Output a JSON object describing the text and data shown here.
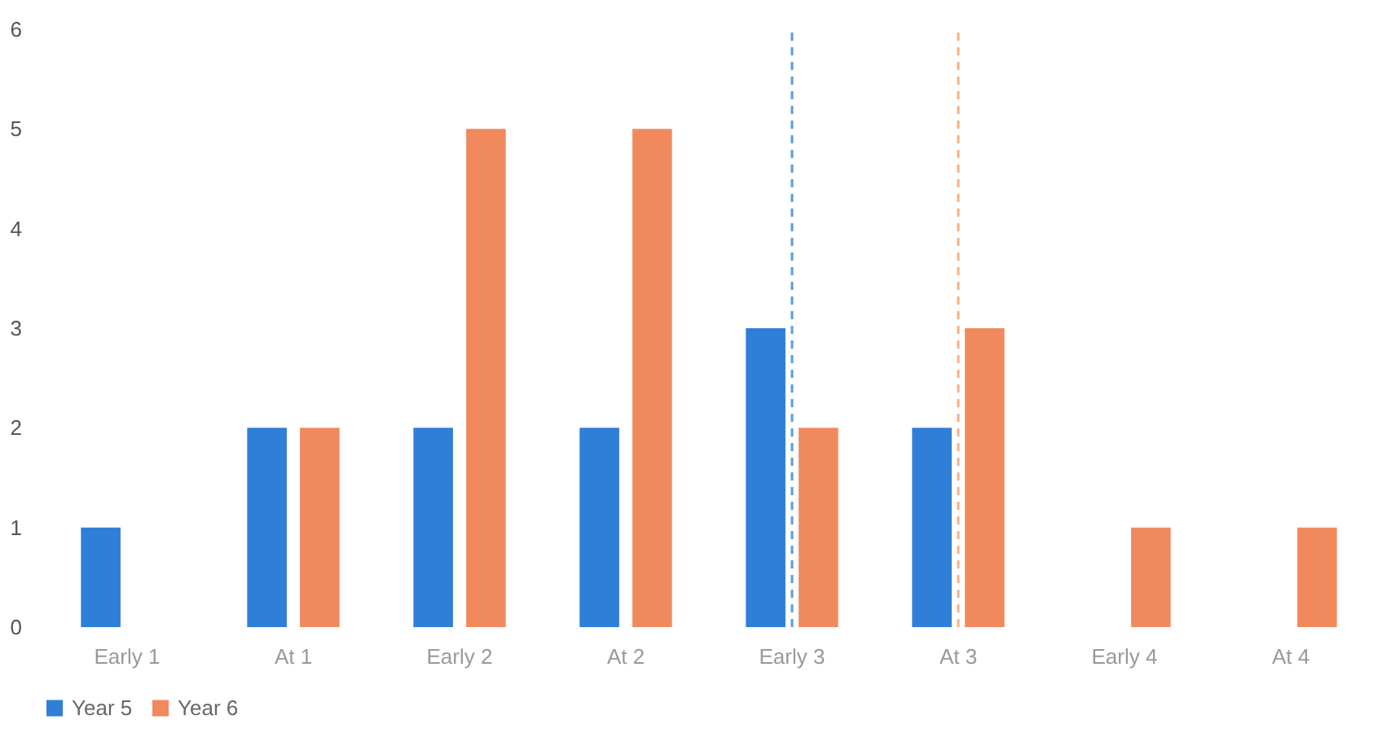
{
  "chart_data": {
    "type": "bar",
    "categories": [
      "Early 1",
      "At 1",
      "Early 2",
      "At 2",
      "Early 3",
      "At 3",
      "Early 4",
      "At 4"
    ],
    "series": [
      {
        "name": "Year 5",
        "color": "#2f7ed8",
        "values": [
          1,
          2,
          2,
          2,
          3,
          2,
          null,
          null
        ]
      },
      {
        "name": "Year 6",
        "color": "#f08a5c",
        "values": [
          null,
          2,
          5,
          5,
          2,
          3,
          1,
          1
        ]
      }
    ],
    "ylim": [
      0,
      6
    ],
    "yticks": [
      0,
      1,
      2,
      3,
      4,
      5,
      6
    ],
    "grid": false,
    "legend": "bottom",
    "ref_lines": [
      {
        "axis": "x",
        "value": "Early 3",
        "color": "#5b9bd5",
        "line_style": "dashed"
      },
      {
        "axis": "x",
        "value": "At 3",
        "color": "#f4b183",
        "line_style": "dashed"
      }
    ]
  }
}
